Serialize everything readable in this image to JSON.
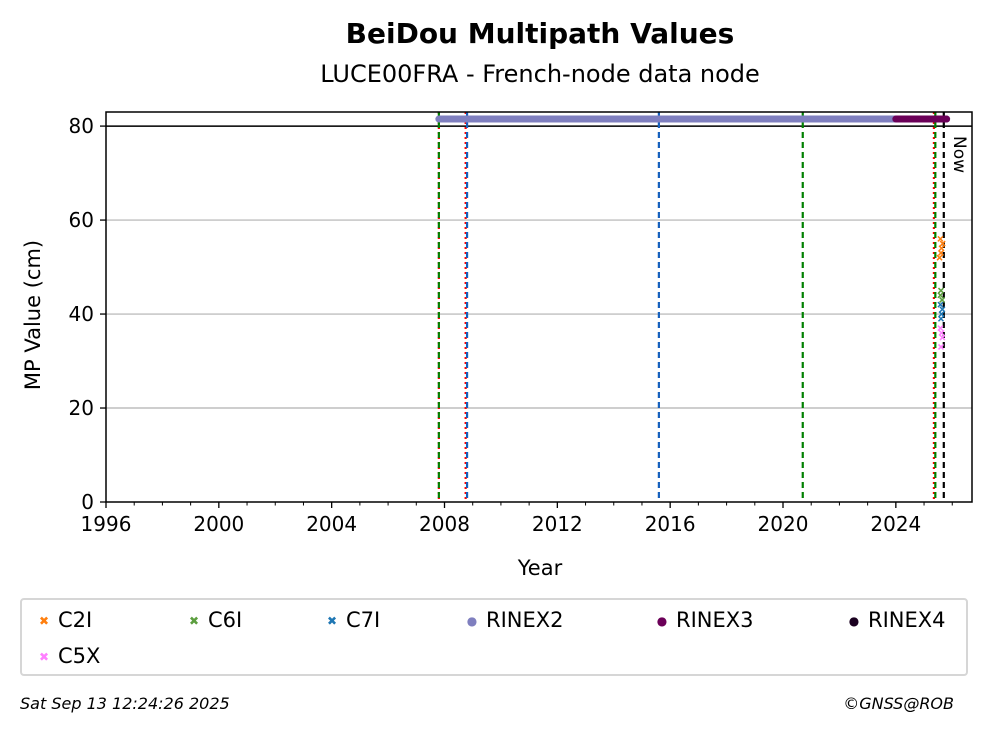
{
  "chart_data": {
    "type": "scatter",
    "title": "BeiDou Multipath Values",
    "subtitle": "LUCE00FRA - French-node data node",
    "xlabel": "Year",
    "ylabel": "MP Value (cm)",
    "xlim": [
      1996,
      2026.7
    ],
    "ylim": [
      0,
      83
    ],
    "xticks": [
      1996,
      2000,
      2004,
      2008,
      2012,
      2016,
      2020,
      2024
    ],
    "yticks": [
      0,
      20,
      40,
      60,
      80
    ],
    "grid": "y",
    "legend_position": "bottom",
    "series": [
      {
        "name": "C2I",
        "marker": "x",
        "color": "#ff7f0e",
        "x": [
          2025.55,
          2025.62,
          2025.58,
          2025.66,
          2025.6
        ],
        "y": [
          52,
          54,
          56,
          55,
          53
        ]
      },
      {
        "name": "C6I",
        "marker": "x",
        "color": "#5c9e3f",
        "x": [
          2025.6,
          2025.64,
          2025.58
        ],
        "y": [
          45,
          43,
          44
        ]
      },
      {
        "name": "C7I",
        "marker": "x",
        "color": "#1f77b4",
        "x": [
          2025.58,
          2025.62,
          2025.65,
          2025.6
        ],
        "y": [
          42,
          40,
          41,
          39
        ]
      },
      {
        "name": "RINEX2",
        "marker": "o",
        "color": "#7f7fbf",
        "x_range": [
          2007.8,
          2025.8
        ],
        "y": 81.5
      },
      {
        "name": "RINEX3",
        "marker": "o",
        "color": "#6b0058",
        "x_range": [
          2024.0,
          2025.8
        ],
        "y": 81.5
      },
      {
        "name": "RINEX4",
        "marker": "o",
        "color": "#1a0020",
        "x": [],
        "y": []
      },
      {
        "name": "C5X",
        "marker": "x",
        "color": "#ff80ff",
        "x": [
          2025.58,
          2025.62,
          2025.65,
          2025.6
        ],
        "y": [
          37,
          36,
          35,
          33
        ]
      }
    ],
    "reference_line": {
      "y": 80,
      "color": "#000000"
    },
    "vertical_lines": [
      {
        "x": 2007.8,
        "color": "#ff0000",
        "style": "dotted"
      },
      {
        "x": 2007.8,
        "color": "#008000",
        "style": "dashed"
      },
      {
        "x": 2008.75,
        "color": "#ff0000",
        "style": "dotted"
      },
      {
        "x": 2008.8,
        "color": "#1560bd",
        "style": "dashed"
      },
      {
        "x": 2015.6,
        "color": "#1560bd",
        "style": "dashed"
      },
      {
        "x": 2020.7,
        "color": "#008000",
        "style": "dashed"
      },
      {
        "x": 2025.35,
        "color": "#ff0000",
        "style": "dotted"
      },
      {
        "x": 2025.4,
        "color": "#008000",
        "style": "dashed"
      },
      {
        "x": 2025.7,
        "color": "#000000",
        "style": "dashed",
        "label": "Now"
      }
    ]
  },
  "footer": {
    "timestamp": "Sat Sep 13 12:24:26 2025",
    "credit": "©GNSS@ROB"
  }
}
